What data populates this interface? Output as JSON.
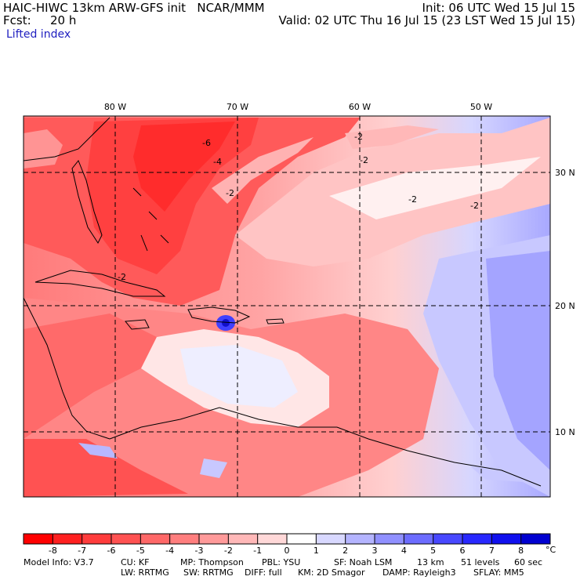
{
  "header": {
    "title_left": "HAIC-HIWC 13km ARW-GFS init   NCAR/MMM",
    "fcst_label": "Fcst:",
    "fcst_value": "20 h",
    "init": "Init: 06 UTC Wed 15 Jul 15",
    "valid": "Valid: 02 UTC Thu 16 Jul 15 (23 LST Wed 15 Jul 15)",
    "field_name": "Lifted index",
    "field_color": "#2020c0"
  },
  "map": {
    "lon_labels": [
      "80 W",
      "70 W",
      "60 W",
      "50 W"
    ],
    "lat_labels": [
      "30 N",
      "20 N",
      "10 N"
    ],
    "contour_labels": [
      "-6",
      "-4",
      "-2",
      "-2",
      "-2",
      "-2",
      "-2",
      "-2"
    ]
  },
  "colorbar": {
    "unit": "°C",
    "ticks": [
      "-8",
      "-7",
      "-6",
      "-5",
      "-4",
      "-3",
      "-2",
      "-1",
      "0",
      "1",
      "2",
      "3",
      "4",
      "5",
      "6",
      "7",
      "8"
    ],
    "colors": [
      "#ff0000",
      "#ff2020",
      "#ff3c3c",
      "#ff5252",
      "#ff6868",
      "#ff7e7e",
      "#ff9a9a",
      "#ffb8b8",
      "#ffd8d8",
      "#ffffff",
      "#d8d8ff",
      "#b4b4ff",
      "#9090ff",
      "#6c6cff",
      "#4848ff",
      "#2828ff",
      "#1010ee",
      "#0000d0"
    ]
  },
  "footer": {
    "line1": [
      "Model Info: V3.7",
      "CU: KF",
      "MP: Thompson",
      "PBL: YSU",
      "SF: Noah LSM",
      "13 km",
      "51 levels",
      "60 sec"
    ],
    "line2": [
      "LW: RRTMG",
      "SW: RRTMG",
      "DIFF: full",
      "KM: 2D Smagor",
      "DAMP: Rayleigh3",
      "SFLAY: MM5"
    ]
  }
}
